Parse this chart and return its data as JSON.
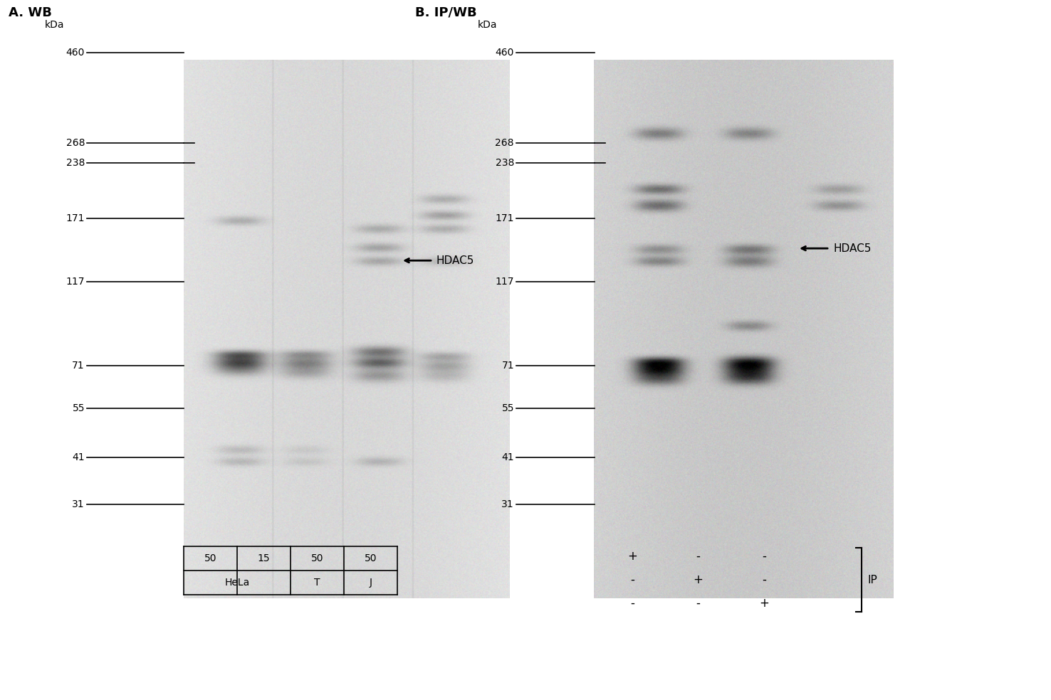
{
  "panel_A_title": "A. WB",
  "panel_B_title": "B. IP/WB",
  "mw_values": [
    460,
    268,
    238,
    171,
    117,
    71,
    55,
    41,
    31
  ],
  "ip_table_rows": [
    [
      "+",
      "-",
      "-"
    ],
    [
      "-",
      "+",
      "-"
    ],
    [
      "-",
      "-",
      "+"
    ]
  ],
  "ip_label": "IP",
  "hdac5_label": "HDAC5",
  "kda_label": "kDa",
  "blot_bg": 220,
  "white": "#ffffff",
  "black": "#000000"
}
